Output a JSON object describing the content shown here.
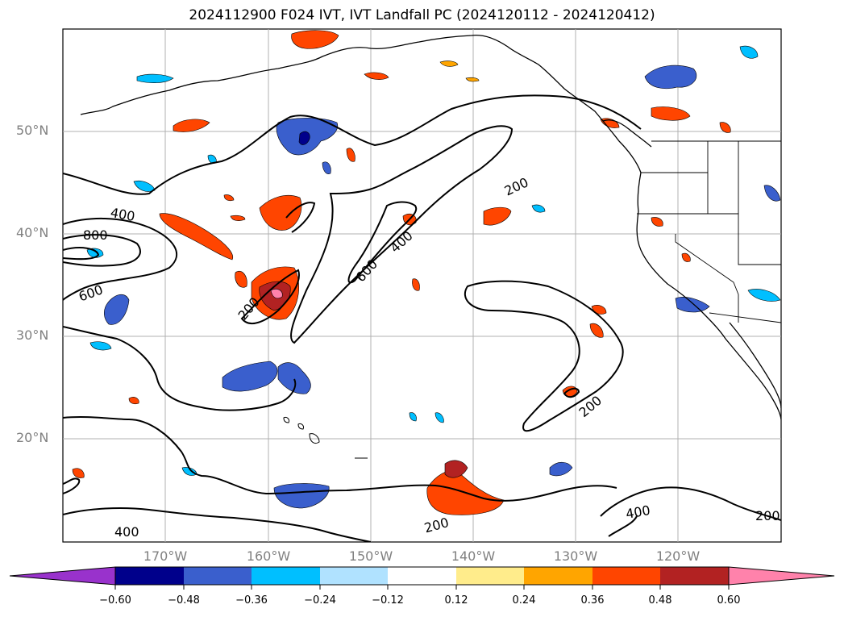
{
  "title": "2024112900 F024 IVT, IVT Landfall PC (2024120112 - 2024120412)",
  "map": {
    "projection": "plate-carree",
    "lon_range": [
      -180,
      -110
    ],
    "lat_range": [
      10,
      60
    ],
    "gridlines": true,
    "lat_labels": [
      "50°N",
      "40°N",
      "30°N",
      "20°N"
    ],
    "lon_labels": [
      "170°W",
      "160°W",
      "150°W",
      "140°W",
      "130°W",
      "120°W"
    ],
    "ivt_contour_levels": [
      200,
      400,
      600,
      800
    ],
    "contour_labels": [
      {
        "text": "400",
        "icon": "contour-label"
      },
      {
        "text": "800",
        "icon": "contour-label"
      },
      {
        "text": "600",
        "icon": "contour-label"
      },
      {
        "text": "200",
        "icon": "contour-label"
      },
      {
        "text": "600",
        "icon": "contour-label"
      },
      {
        "text": "400",
        "icon": "contour-label"
      },
      {
        "text": "200",
        "icon": "contour-label"
      },
      {
        "text": "200",
        "icon": "contour-label"
      },
      {
        "text": "400",
        "icon": "contour-label"
      },
      {
        "text": "200",
        "icon": "contour-label"
      },
      {
        "text": "400",
        "icon": "contour-label"
      },
      {
        "text": "200",
        "icon": "contour-label"
      }
    ]
  },
  "colorbar": {
    "tick_labels": [
      "−0.60",
      "−0.48",
      "−0.36",
      "−0.24",
      "−0.12",
      "0.12",
      "0.24",
      "0.36",
      "0.48",
      "0.60"
    ],
    "colors": [
      "#9932cc",
      "#00008b",
      "#3a5fcd",
      "#00bfff",
      "#b0e2ff",
      "#ffffff",
      "#ffec8b",
      "#ffa500",
      "#ff4500",
      "#b22222",
      "#ff82ab"
    ],
    "extend": "both"
  }
}
